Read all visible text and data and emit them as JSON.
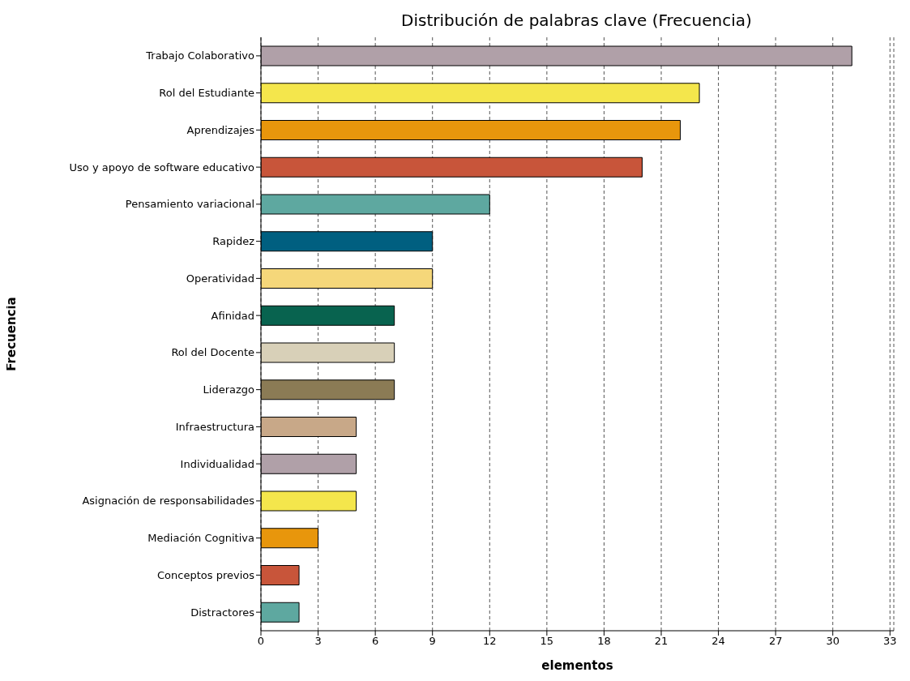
{
  "chart_data": {
    "type": "bar",
    "orientation": "horizontal",
    "title": "Distribución de palabras clave (Frecuencia)",
    "xlabel": "elementos",
    "ylabel": "Frecuencia",
    "categories": [
      "Trabajo Colaborativo",
      "Rol del Estudiante",
      "Aprendizajes",
      "Uso y apoyo de software educativo",
      "Pensamiento variacional",
      "Rapidez",
      "Operatividad",
      "Afinidad",
      "Rol del Docente",
      "Liderazgo",
      "Infraestructura",
      "Individualidad",
      "Asignación de responsabilidades",
      "Mediación Cognitiva",
      "Conceptos previos",
      "Distractores"
    ],
    "values": [
      31,
      23,
      22,
      20,
      12,
      9,
      9,
      7,
      7,
      7,
      5,
      5,
      5,
      3,
      2,
      2
    ],
    "colors": [
      "#b0a0a8",
      "#f4e64c",
      "#e8960c",
      "#c8553a",
      "#5ea8a0",
      "#005f80",
      "#f5d77a",
      "#08634f",
      "#d8d0b8",
      "#8b7b55",
      "#c8a888",
      "#b0a0a8",
      "#f4e64c",
      "#e8960c",
      "#c8553a",
      "#5ea8a0"
    ],
    "xlim": [
      0,
      33.2
    ],
    "xticks": [
      0,
      3,
      6,
      9,
      12,
      15,
      18,
      21,
      24,
      27,
      30,
      33
    ],
    "grid": "x"
  }
}
